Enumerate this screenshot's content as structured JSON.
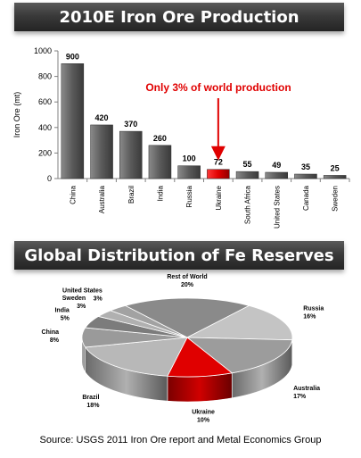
{
  "banners": {
    "production": "2010E Iron Ore Production",
    "reserves": "Global Distribution of Fe Reserves"
  },
  "source_note": "Source:  USGS 2011 Iron Ore report and Metal Economics Group",
  "colors": {
    "bar": "#5a5a5a",
    "highlight": "#e00000",
    "annotation": "#e00000"
  },
  "chart_data": [
    {
      "type": "bar",
      "title": "2010E Iron Ore Production",
      "ylabel": "Iron Ore (mt)",
      "ylim": [
        0,
        1000
      ],
      "yticks": [
        0,
        200,
        400,
        600,
        800,
        1000
      ],
      "categories": [
        "China",
        "Australia",
        "Brazil",
        "India",
        "Russia",
        "Ukraine",
        "South Africa",
        "United States",
        "Canada",
        "Sweden"
      ],
      "values": [
        900,
        420,
        370,
        260,
        100,
        72,
        55,
        49,
        35,
        25
      ],
      "highlight": "Ukraine",
      "annotation": "Only 3% of world production",
      "grid": false
    },
    {
      "type": "pie",
      "title": "Global Distribution of Fe Reserves",
      "slices": [
        {
          "label": "Rest of World",
          "value": 20,
          "text": "20%"
        },
        {
          "label": "Russia",
          "value": 16,
          "text": "16%"
        },
        {
          "label": "Australia",
          "value": 17,
          "text": "17%"
        },
        {
          "label": "Ukraine",
          "value": 10,
          "text": "10%",
          "highlight": true
        },
        {
          "label": "Brazil",
          "value": 18,
          "text": "18%"
        },
        {
          "label": "China",
          "value": 8,
          "text": "8%"
        },
        {
          "label": "India",
          "value": 5,
          "text": "5%"
        },
        {
          "label": "Sweden",
          "value": 3,
          "text": "3%"
        },
        {
          "label": "United States",
          "value": 3,
          "text": "3%"
        }
      ]
    }
  ]
}
